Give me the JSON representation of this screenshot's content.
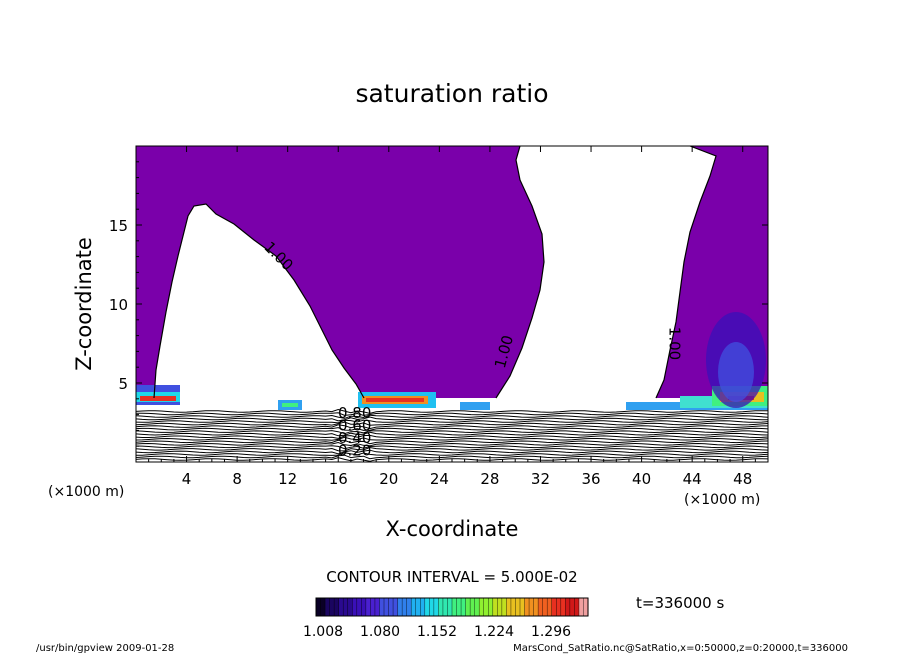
{
  "chart_data": {
    "type": "contour",
    "title": "saturation ratio",
    "xlabel": "X-coordinate",
    "ylabel": "Z-coordinate",
    "x_unit": "(×1000 m)",
    "y_unit": "(×1000 m)",
    "xlim": [
      0,
      50
    ],
    "ylim": [
      0,
      20
    ],
    "x_ticks": [
      4,
      8,
      12,
      16,
      20,
      24,
      28,
      32,
      36,
      40,
      44,
      48
    ],
    "y_ticks": [
      5,
      10,
      15
    ],
    "contour_labels": [
      {
        "text": "1.00",
        "x": 11,
        "y": 12.8,
        "angle": 45
      },
      {
        "text": "1.00",
        "x": 29.5,
        "y": 6.9,
        "angle": -75
      },
      {
        "text": "1.00",
        "x": 42.2,
        "y": 7.5,
        "angle": 90
      },
      {
        "text": "0.20",
        "x": 17.3,
        "y": 0.4,
        "angle": 0
      },
      {
        "text": "0.40",
        "x": 17.3,
        "y": 1.2,
        "angle": 0
      },
      {
        "text": "0.60",
        "x": 17.3,
        "y": 2.0,
        "angle": 0
      },
      {
        "text": "0.80",
        "x": 17.3,
        "y": 2.8,
        "angle": 0
      }
    ],
    "contour_interval": "CONTOUR INTERVAL = 5.000E-02",
    "time_label": "t=336000 s",
    "colorbar": {
      "ticks": [
        "1.008",
        "1.080",
        "1.152",
        "1.224",
        "1.296"
      ],
      "colors": [
        "#0a0026",
        "#1a0560",
        "#2a0a90",
        "#3a10b8",
        "#4a20d0",
        "#4050e0",
        "#3080ec",
        "#20b0f0",
        "#20d8e8",
        "#30e8b0",
        "#40f080",
        "#60f050",
        "#90f030",
        "#c0e020",
        "#e8c020",
        "#f09020",
        "#f06020",
        "#e83020",
        "#d01818",
        "#f0a0a0"
      ],
      "base_color": "#7a00aa"
    },
    "footer_left": "/usr/bin/gpview   2009-01-28",
    "footer_right": "MarsCond_SatRatio.nc@SatRatio,x=0:50000,z=0:20000,t=336000"
  }
}
